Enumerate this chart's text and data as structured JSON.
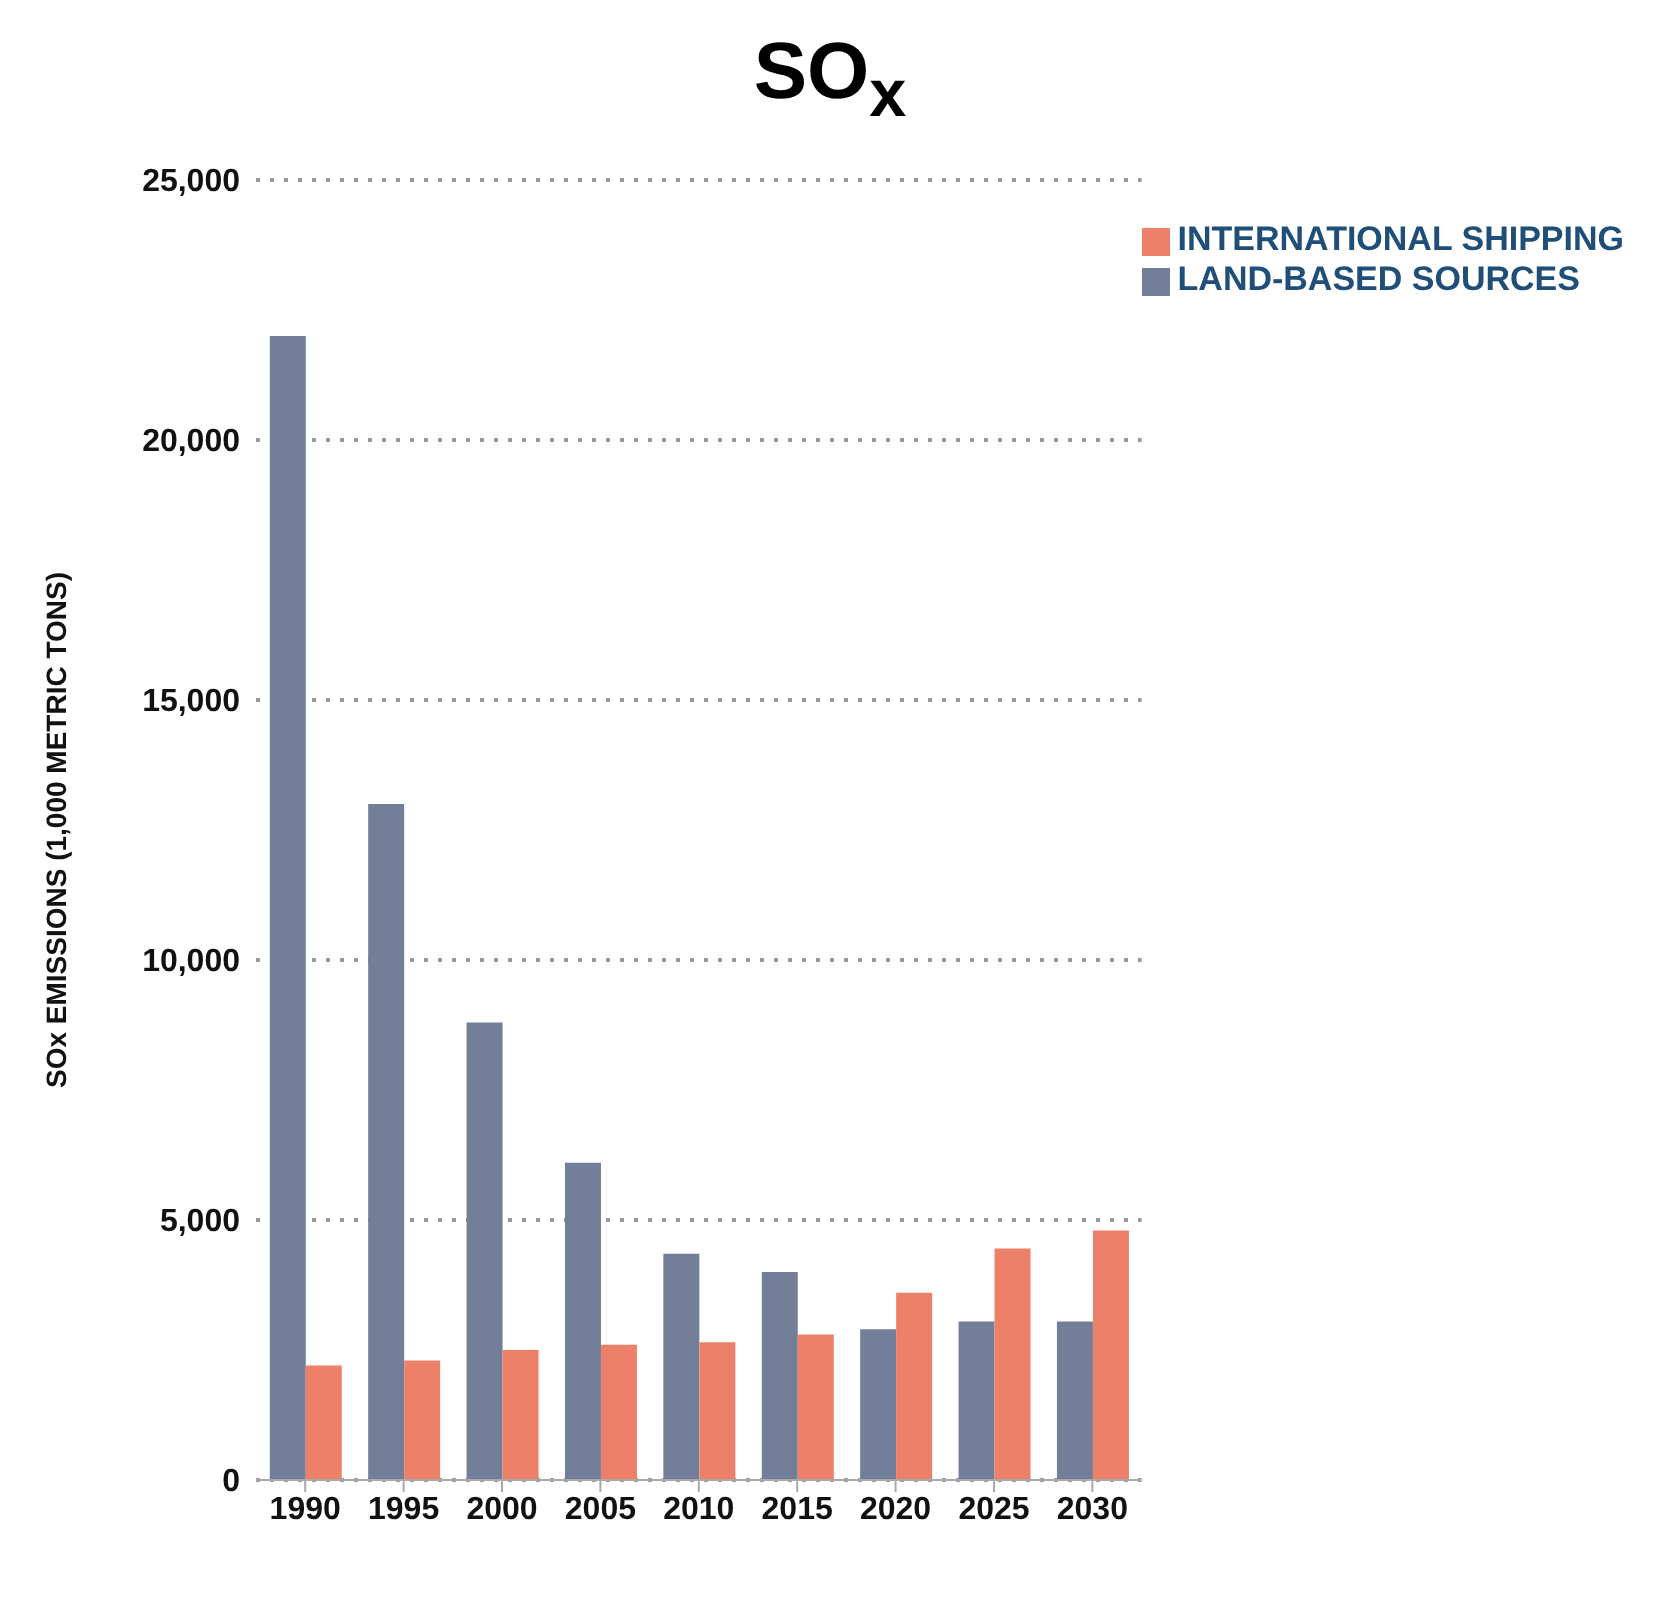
{
  "chart_data": {
    "type": "bar",
    "title": "SO$_{x}$",
    "ylabel": "SOx EMISSIONS (1,000 METRIC TONS)",
    "categories": [
      "1990",
      "1995",
      "2000",
      "2005",
      "2010",
      "2015",
      "2020",
      "2025",
      "2030"
    ],
    "series": [
      {
        "name": "LAND-BASED SOURCES",
        "color": "#737f99",
        "values": [
          22000,
          13000,
          8800,
          6100,
          4350,
          4000,
          2900,
          3050,
          3050
        ]
      },
      {
        "name": "INTERNATIONAL SHIPPING",
        "color": "#ec8068",
        "values": [
          2200,
          2300,
          2500,
          2600,
          2650,
          2800,
          3600,
          4450,
          4800
        ]
      }
    ],
    "ylim": [
      0,
      25000
    ],
    "yticks": [
      0,
      {
        "value": 5000,
        "label": "5,000"
      },
      {
        "value": 10000,
        "label": "10,000"
      },
      {
        "value": 15000,
        "label": "15,000"
      },
      {
        "value": 20000,
        "label": "20,000"
      },
      {
        "value": 25000,
        "label": "25,000"
      }
    ],
    "grid": "y",
    "legend": "top right"
  }
}
